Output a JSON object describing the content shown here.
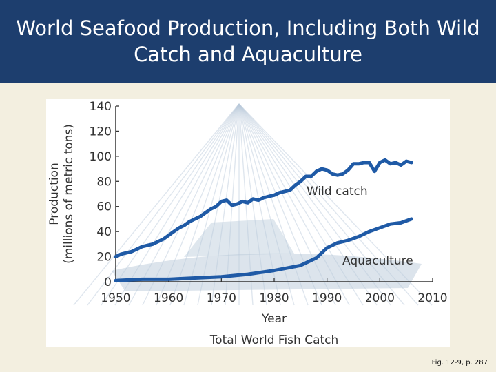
{
  "slide": {
    "title": "World Seafood Production, Including Both Wild Catch and Aquaculture",
    "credit": "Fig. 12-9, p. 287"
  },
  "colors": {
    "header_bg": "#1d3e6e",
    "line": "#1f5aa6",
    "axis": "#333333",
    "photo_tint": "#b9c9da"
  },
  "chart_data": {
    "type": "line",
    "title": "Total World Fish Catch",
    "xlabel": "Year",
    "ylabel": "Production\n(millions of metric tons)",
    "xlim": [
      1950,
      2010
    ],
    "ylim": [
      0,
      140
    ],
    "xticks": [
      1950,
      1960,
      1970,
      1980,
      1990,
      2000,
      2010
    ],
    "yticks": [
      0,
      20,
      40,
      60,
      80,
      100,
      120,
      140
    ],
    "grid": false,
    "legend": "inline labels",
    "annotations": [
      {
        "text": "Wild catch",
        "series": "Wild catch"
      },
      {
        "text": "Aquaculture",
        "series": "Aquaculture"
      }
    ],
    "series": [
      {
        "name": "Wild catch",
        "x": [
          1950,
          1951,
          1952,
          1953,
          1954,
          1955,
          1956,
          1957,
          1958,
          1959,
          1960,
          1961,
          1962,
          1963,
          1964,
          1965,
          1966,
          1967,
          1968,
          1969,
          1970,
          1971,
          1972,
          1973,
          1974,
          1975,
          1976,
          1977,
          1978,
          1979,
          1980,
          1981,
          1982,
          1983,
          1984,
          1985,
          1986,
          1987,
          1988,
          1989,
          1990,
          1991,
          1992,
          1993,
          1994,
          1995,
          1996,
          1997,
          1998,
          1999,
          2000,
          2001,
          2002,
          2003,
          2004,
          2005,
          2006
        ],
        "y": [
          20,
          22,
          23,
          24,
          26,
          28,
          29,
          30,
          32,
          34,
          37,
          40,
          43,
          45,
          48,
          50,
          52,
          55,
          58,
          60,
          64,
          65,
          61,
          62,
          64,
          63,
          66,
          65,
          67,
          68,
          69,
          71,
          72,
          73,
          77,
          80,
          84,
          84,
          88,
          90,
          89,
          86,
          85,
          86,
          89,
          94,
          94,
          95,
          95,
          88,
          95,
          97,
          94,
          95,
          93,
          96,
          95
        ]
      },
      {
        "name": "Aquaculture",
        "x": [
          1950,
          1955,
          1960,
          1965,
          1970,
          1975,
          1980,
          1985,
          1988,
          1990,
          1992,
          1994,
          1996,
          1998,
          2000,
          2002,
          2004,
          2006
        ],
        "y": [
          1,
          2,
          2,
          3,
          4,
          6,
          9,
          13,
          19,
          27,
          31,
          33,
          36,
          40,
          43,
          46,
          47,
          50
        ]
      }
    ]
  }
}
